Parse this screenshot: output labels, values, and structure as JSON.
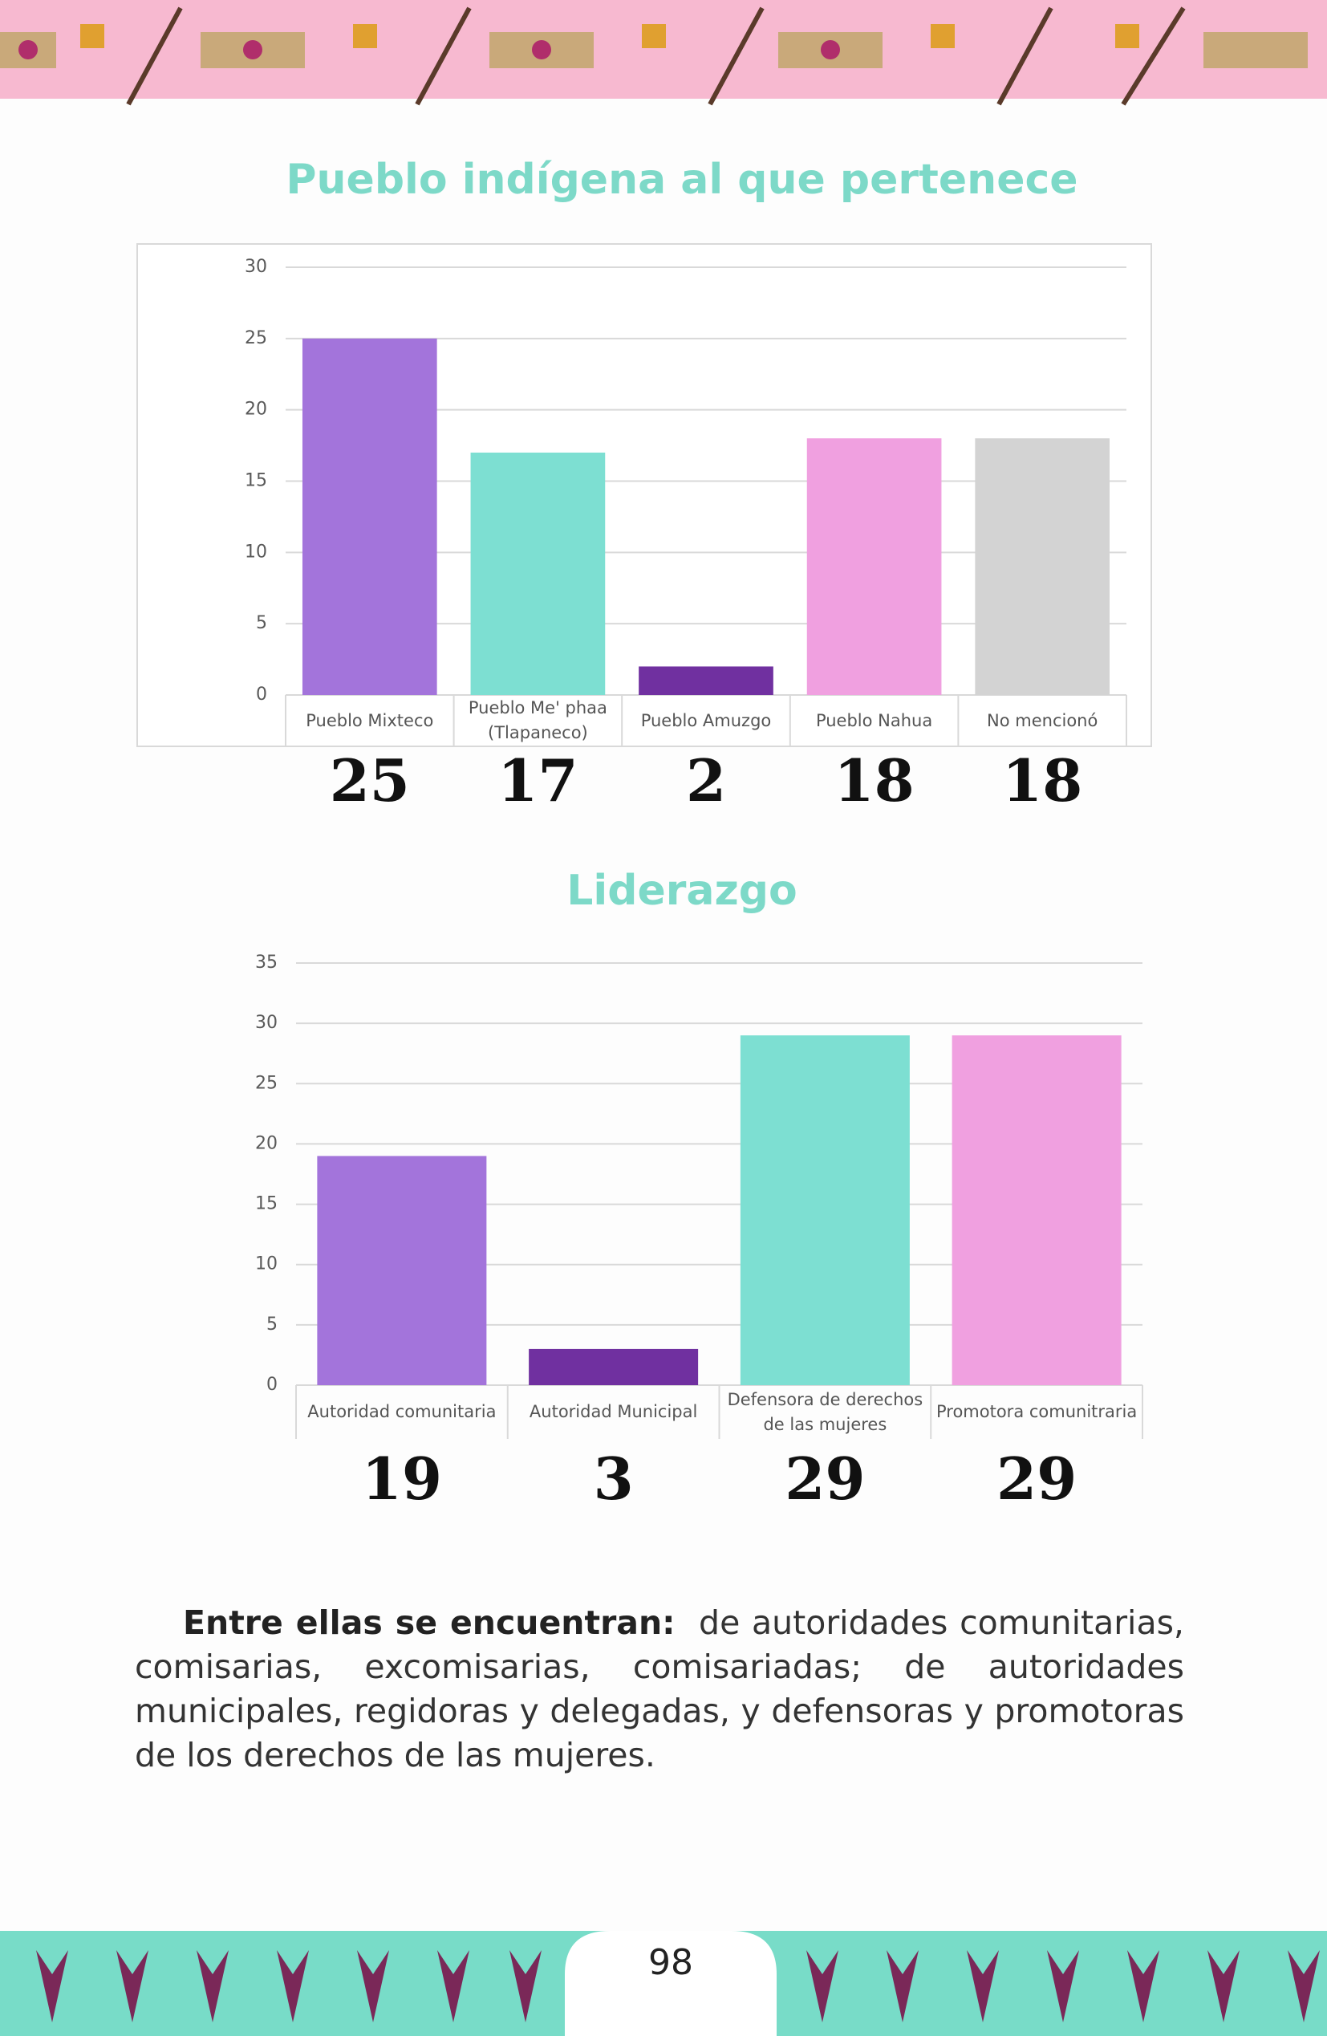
{
  "chart_data": [
    {
      "type": "bar",
      "title": "Pueblo indígena al que pertenece",
      "categories": [
        "Pueblo Mixteco",
        "Pueblo Me' phaa (Tlapaneco)",
        "Pueblo Amuzgo",
        "Pueblo Nahua",
        "No mencionó"
      ],
      "values": [
        25,
        17,
        2,
        18,
        18
      ],
      "colors": [
        "#a374db",
        "#7ddfd2",
        "#7030a0",
        "#f0a0e0",
        "#d3d3d3"
      ],
      "ylim": [
        0,
        30
      ],
      "yticks": [
        0,
        5,
        10,
        15,
        20,
        25,
        30
      ],
      "grid": true
    },
    {
      "type": "bar",
      "title": "Liderazgo",
      "categories": [
        "Autoridad comunitaria",
        "Autoridad Municipal",
        "Defensora de derechos de las mujeres",
        "Promotora comunitraria"
      ],
      "values": [
        19,
        3,
        29,
        29
      ],
      "colors": [
        "#a374db",
        "#7030a0",
        "#7ddfd2",
        "#f0a0e0"
      ],
      "ylim": [
        0,
        35
      ],
      "yticks": [
        0,
        5,
        10,
        15,
        20,
        25,
        30,
        35
      ],
      "grid": true
    }
  ],
  "text": {
    "lead": "Entre ellas se encuentran:",
    "body": "de autoridades comunitarias, comisarias, excomisarias, comisariadas; de autoridades municipales, regidoras y delegadas, y defensoras y promotoras de los derechos de las mujeres."
  },
  "page_number": "98"
}
